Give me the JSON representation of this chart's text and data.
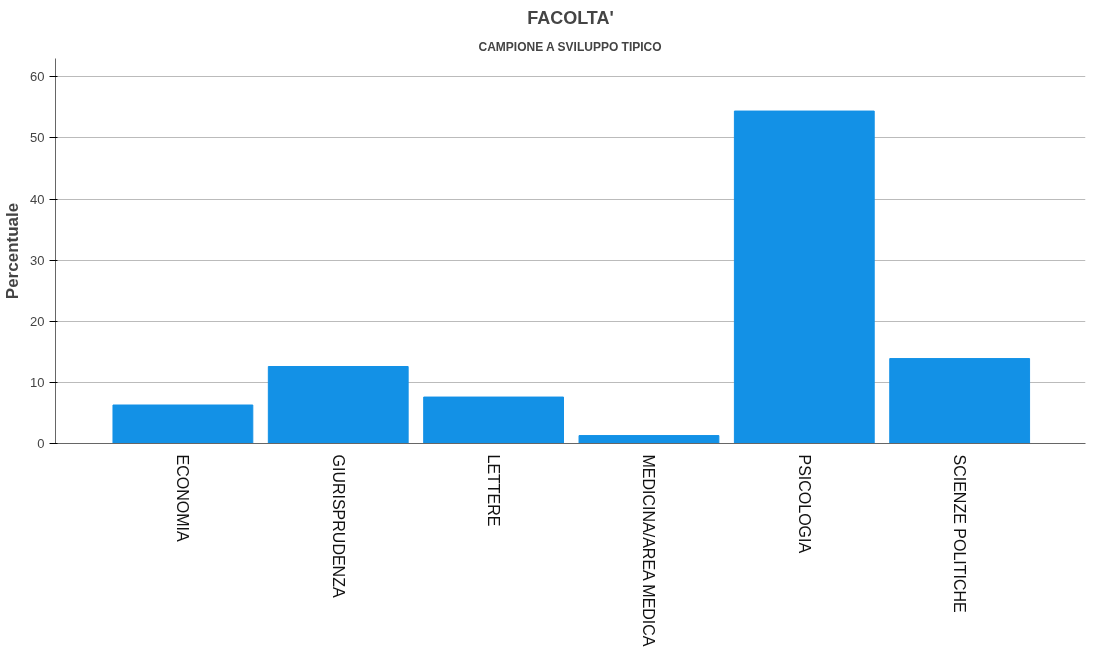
{
  "chart_data": {
    "type": "bar",
    "title": "FACOLTA'",
    "subtitle": "CAMPIONE A SVILUPPO TIPICO",
    "ylabel": "Percentuale",
    "categories": [
      "ECONOMIA",
      "GIURISPRUDENZA",
      "LETTERE",
      "MEDICINA/AREA MEDICA",
      "PSICOLOGIA",
      "SCIENZE POLITICHE"
    ],
    "values": [
      6.3,
      12.6,
      7.6,
      1.3,
      54.4,
      13.9
    ],
    "color": "#1391e6",
    "ylim": [
      0,
      63
    ],
    "yticks": [
      0,
      10,
      20,
      30,
      40,
      50,
      60
    ],
    "grid": "y"
  }
}
